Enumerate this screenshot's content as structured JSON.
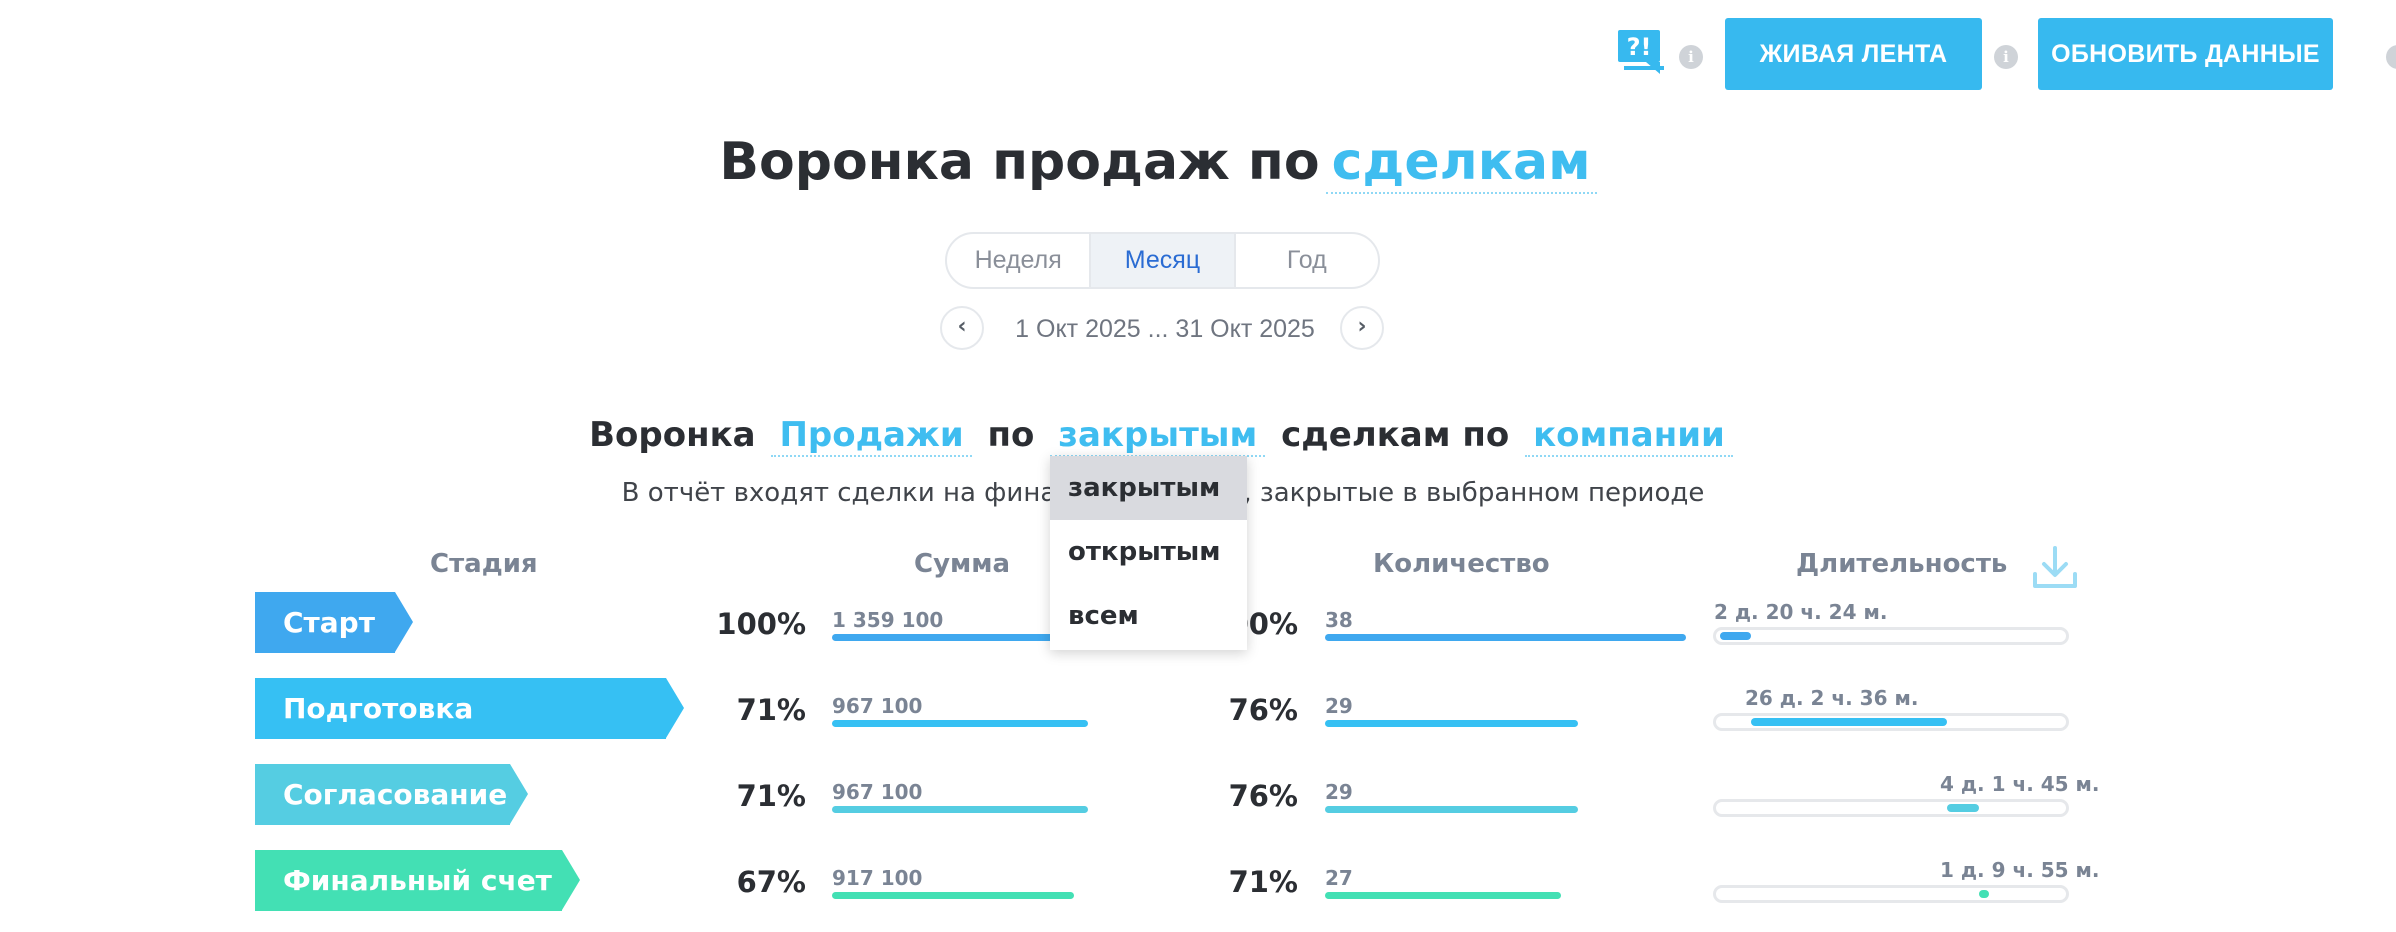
{
  "toolbar": {
    "live_feed_label": "ЖИВАЯ ЛЕНТА",
    "refresh_label": "ОБНОВИТЬ ДАННЫЕ",
    "info_glyph": "i"
  },
  "title": {
    "prefix": "Воронка продаж по",
    "entity": "сделкам"
  },
  "period": {
    "tabs": [
      "Неделя",
      "Месяц",
      "Год"
    ],
    "active": "Месяц",
    "prev_glyph": "‹",
    "next_glyph": "›",
    "range": "1 Окт 2025 ... 31 Окт 2025"
  },
  "funnel_title": {
    "word1": "Воронка",
    "funnel": "Продажи",
    "word2": "по",
    "filter": "закрытым",
    "word3": "сделкам по",
    "group": "компании"
  },
  "description": "В отчёт входят сделки на финальной стадии, закрытые в выбранном периоде",
  "dropdown": {
    "options": [
      "закрытым",
      "открытым",
      "всем"
    ],
    "selected": "закрытым"
  },
  "columns": {
    "stage": "Стадия",
    "sum": "Сумма",
    "count": "Количество",
    "duration": "Длительность"
  },
  "colors": {
    "accent": "#37b9ef",
    "stage_1": "#3fa8ef",
    "stage_2": "#36c0f3",
    "stage_3": "#55cde2",
    "stage_4": "#43e0b4"
  },
  "rows": [
    {
      "name": "Старт",
      "sum_pct": "100%",
      "sum": "1 359 100",
      "sum_ratio": 1.0,
      "count_pct": "100%",
      "count": "38",
      "count_ratio": 1.0,
      "duration": "2 д. 20 ч. 24 м.",
      "dur_start": 0.01,
      "dur_end": 0.1
    },
    {
      "name": "Подготовка документов",
      "sum_pct": "71%",
      "sum": "967 100",
      "sum_ratio": 0.71,
      "count_pct": "76%",
      "count": "29",
      "count_ratio": 0.76,
      "duration": "26 д. 2 ч. 36 м.",
      "dur_start": 0.1,
      "dur_end": 0.66
    },
    {
      "name": "Согласование",
      "sum_pct": "71%",
      "sum": "967 100",
      "sum_ratio": 0.71,
      "count_pct": "76%",
      "count": "29",
      "count_ratio": 0.76,
      "duration": "4 д. 1 ч. 45 м.",
      "dur_start": 0.66,
      "dur_end": 0.75
    },
    {
      "name": "Финальный счет",
      "sum_pct": "67%",
      "sum": "917 100",
      "sum_ratio": 0.67,
      "count_pct": "71%",
      "count": "27",
      "count_ratio": 0.71,
      "duration": "1 д. 9 ч. 55 м.",
      "dur_start": 0.75,
      "dur_end": 0.78
    }
  ]
}
